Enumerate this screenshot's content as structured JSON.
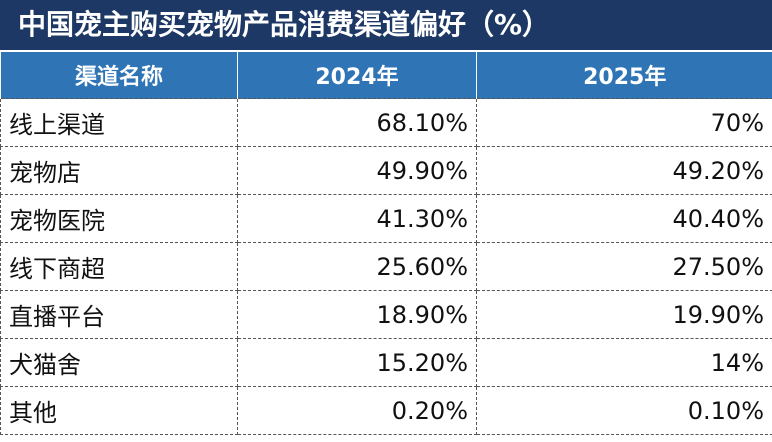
{
  "title": "中国宠主购买宠物产品消费渠道偏好（%）",
  "table": {
    "header": [
      "渠道名称",
      "2024年",
      "2025年"
    ],
    "rows": [
      [
        "线上渠道",
        "68.10%",
        "70%"
      ],
      [
        "宠物店",
        "49.90%",
        "49.20%"
      ],
      [
        "宠物医院",
        "41.30%",
        "40.40%"
      ],
      [
        "线下商超",
        "25.60%",
        "27.50%"
      ],
      [
        "直播平台",
        "18.90%",
        "19.90%"
      ],
      [
        "犬猫舍",
        "15.20%",
        "14%"
      ],
      [
        "其他",
        "0.20%",
        "0.10%"
      ]
    ]
  }
}
